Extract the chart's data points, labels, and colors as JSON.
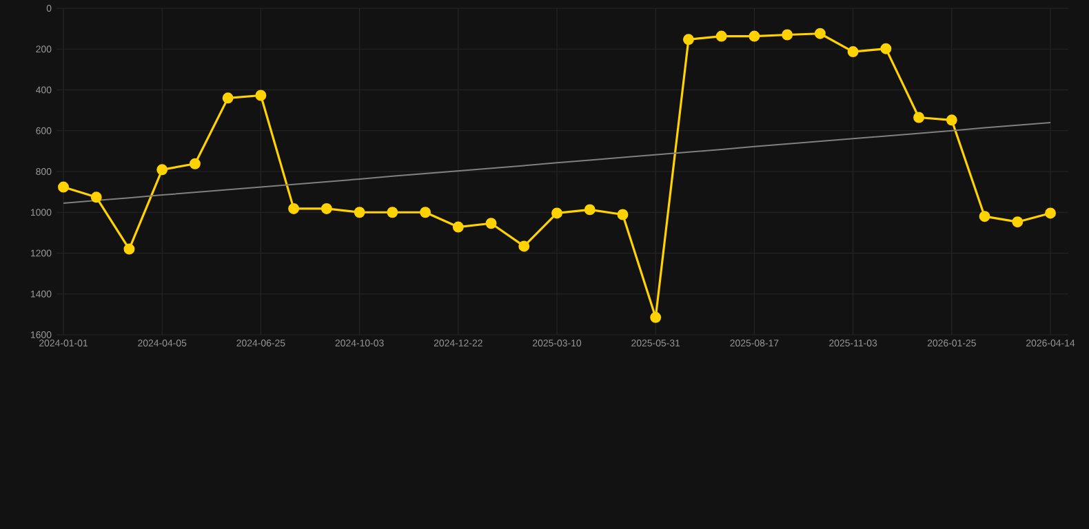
{
  "chart_data": {
    "type": "line",
    "categories": [
      "2024-01-01",
      null,
      null,
      "2024-04-05",
      null,
      null,
      "2024-06-25",
      null,
      null,
      "2024-10-03",
      null,
      null,
      "2024-12-22",
      null,
      null,
      "2025-03-10",
      null,
      null,
      "2025-05-31",
      null,
      null,
      "2025-08-17",
      null,
      null,
      "2025-11-03",
      null,
      null,
      "2026-01-25",
      null,
      null,
      "2026-04-14"
    ],
    "series": [
      {
        "color": "#ffd200",
        "marker": "circle",
        "values": [
          876,
          926,
          1180,
          791,
          762,
          440,
          427,
          982,
          982,
          1000,
          1000,
          1000,
          1072,
          1054,
          1166,
          1004,
          987,
          1011,
          1515,
          153,
          137,
          137,
          130,
          124,
          213,
          198,
          535,
          548,
          1020,
          1047,
          1004
        ]
      },
      {
        "color": "#808080",
        "marker": "none",
        "values": [
          955,
          942,
          929,
          915,
          902,
          889,
          876,
          863,
          850,
          837,
          823,
          810,
          797,
          784,
          771,
          757,
          744,
          731,
          718,
          705,
          692,
          678,
          665,
          652,
          639,
          626,
          613,
          600,
          586,
          573,
          560
        ]
      }
    ],
    "ylim": [
      1600,
      0
    ],
    "yticks": [
      0,
      200,
      400,
      600,
      800,
      1000,
      1200,
      1400,
      1600
    ],
    "grid": true,
    "line_style": "solid"
  }
}
